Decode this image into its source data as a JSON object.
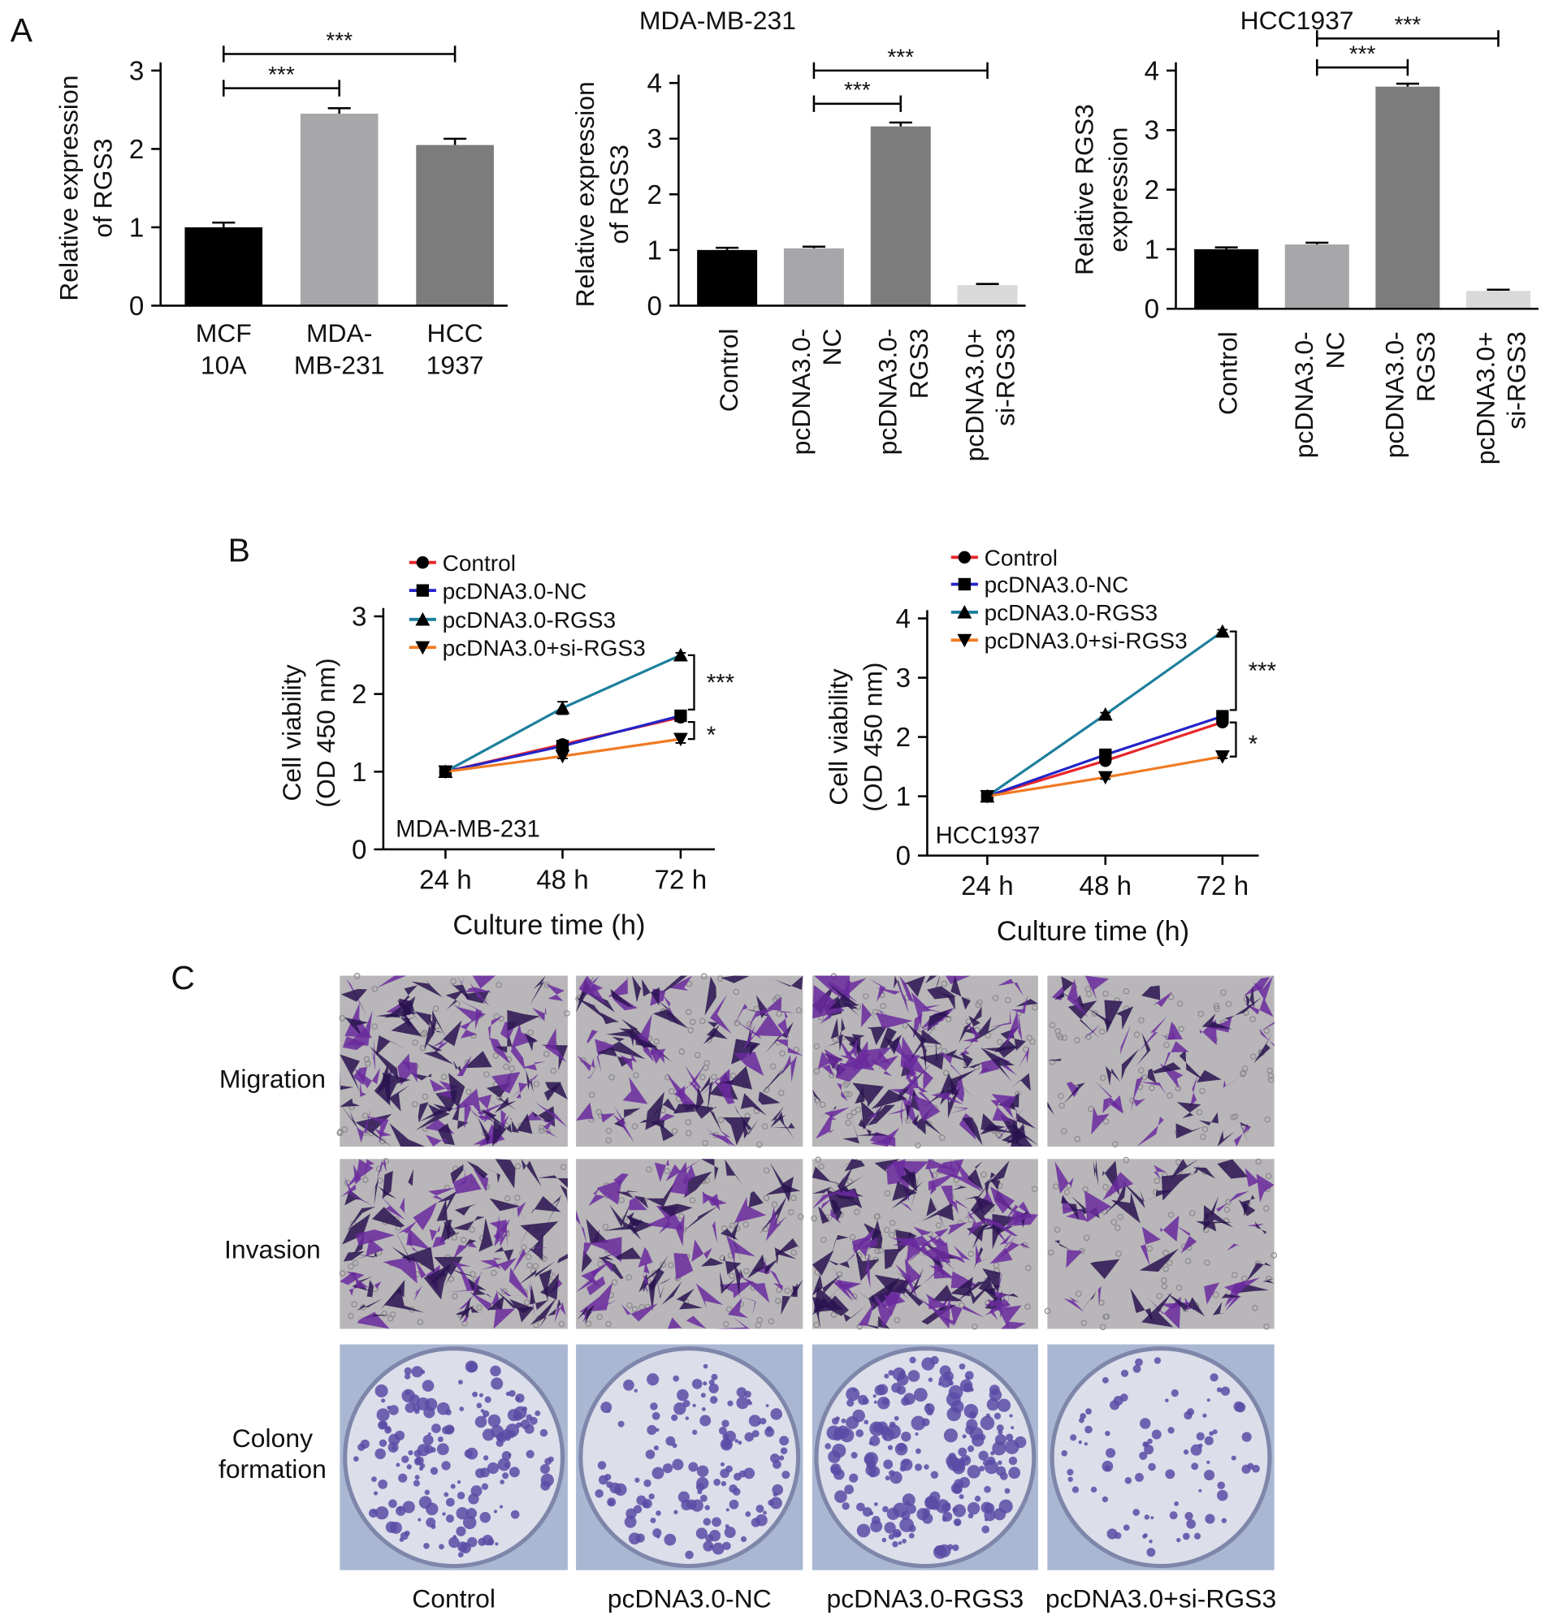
{
  "panel_labels": [
    "A",
    "B",
    "C"
  ],
  "chart_data": [
    {
      "type": "bar",
      "y_label": "Relative expression\nof RGS3",
      "categories": [
        "MCF\n10A",
        "MDA-\nMB-231",
        "HCC\n1937"
      ],
      "values": [
        1.0,
        2.45,
        2.05
      ],
      "errors": [
        0.06,
        0.07,
        0.08
      ],
      "colors": [
        "#000000",
        "#a7a7aa",
        "#7c7c7c"
      ],
      "ylim": [
        0,
        3
      ],
      "yticks": [
        0,
        1,
        2,
        3
      ],
      "significance": [
        "***",
        "***"
      ]
    },
    {
      "type": "bar",
      "title": "MDA-MB-231",
      "y_label": "Relative expression\nof RGS3",
      "categories": [
        "Control",
        "pcDNA3.0-\nNC",
        "pcDNA3.0-\nRGS3",
        "pcDNA3.0+\nsi-RGS3"
      ],
      "values": [
        1.0,
        1.03,
        3.22,
        0.37
      ],
      "errors": [
        0.04,
        0.03,
        0.07,
        0.02
      ],
      "colors": [
        "#000000",
        "#a7a7aa",
        "#7c7c7c",
        "#d9d9d9"
      ],
      "ylim": [
        0,
        4
      ],
      "yticks": [
        0,
        1,
        2,
        3,
        4
      ],
      "significance": [
        "***",
        "***"
      ]
    },
    {
      "type": "bar",
      "title": "HCC1937",
      "y_label": "Relative RGS3\nexpression",
      "categories": [
        "Control",
        "pcDNA3.0-\nNC",
        "pcDNA3.0-\nRGS3",
        "pcDNA3.0+\nsi-RGS3"
      ],
      "values": [
        1.0,
        1.08,
        3.73,
        0.3
      ],
      "errors": [
        0.03,
        0.03,
        0.05,
        0.02
      ],
      "colors": [
        "#000000",
        "#a7a7aa",
        "#7c7c7c",
        "#d9d9d9"
      ],
      "ylim": [
        0,
        4
      ],
      "yticks": [
        0,
        1,
        2,
        3,
        4
      ],
      "significance": [
        "***",
        "***"
      ]
    },
    {
      "type": "line",
      "x_label": "Culture time (h)",
      "y_label": "Cell viability\n(OD 450 nm)",
      "categories": [
        "24 h",
        "48 h",
        "72 h"
      ],
      "series": [
        {
          "name": "Control",
          "color": "#e8262b",
          "marker": "circle",
          "values": [
            1.0,
            1.35,
            1.7
          ],
          "errors": [
            0.02,
            0.03,
            0.04
          ]
        },
        {
          "name": "pcDNA3.0-NC",
          "color": "#2323c8",
          "marker": "square",
          "values": [
            1.0,
            1.33,
            1.72
          ],
          "errors": [
            0.02,
            0.03,
            0.04
          ]
        },
        {
          "name": "pcDNA3.0-RGS3",
          "color": "#1d7f9c",
          "marker": "triangle-up",
          "values": [
            1.0,
            1.82,
            2.5
          ],
          "errors": [
            0.02,
            0.08,
            0.03
          ]
        },
        {
          "name": "pcDNA3.0+si-RGS3",
          "color": "#f07a22",
          "marker": "triangle-down",
          "values": [
            1.0,
            1.2,
            1.42
          ],
          "errors": [
            0.02,
            0.03,
            0.05
          ]
        }
      ],
      "ylim": [
        0,
        3
      ],
      "yticks": [
        0,
        1,
        2,
        3
      ],
      "inset_label": "MDA-MB-231",
      "significance": [
        "***",
        "*"
      ]
    },
    {
      "type": "line",
      "x_label": "Culture time (h)",
      "y_label": "Cell viability\n(OD 450 nm)",
      "categories": [
        "24 h",
        "48 h",
        "72 h"
      ],
      "series": [
        {
          "name": "Control",
          "color": "#e8262b",
          "marker": "circle",
          "values": [
            1.0,
            1.6,
            2.25
          ],
          "errors": [
            0.02,
            0.03,
            0.04
          ]
        },
        {
          "name": "pcDNA3.0-NC",
          "color": "#2323c8",
          "marker": "square",
          "values": [
            1.0,
            1.7,
            2.35
          ],
          "errors": [
            0.02,
            0.03,
            0.04
          ]
        },
        {
          "name": "pcDNA3.0-RGS3",
          "color": "#1d7f9c",
          "marker": "triangle-up",
          "values": [
            1.0,
            2.38,
            3.78
          ],
          "errors": [
            0.02,
            0.03,
            0.03
          ]
        },
        {
          "name": "pcDNA3.0+si-RGS3",
          "color": "#f07a22",
          "marker": "triangle-down",
          "values": [
            1.0,
            1.32,
            1.67
          ],
          "errors": [
            0.02,
            0.03,
            0.03
          ]
        }
      ],
      "ylim": [
        0,
        4
      ],
      "yticks": [
        0,
        1,
        2,
        3,
        4
      ],
      "inset_label": "HCC1937",
      "significance": [
        "***",
        "*"
      ]
    }
  ],
  "panel_c": {
    "row_labels": [
      "Migration",
      "Invasion",
      "Colony\nformation"
    ],
    "column_labels": [
      "Control",
      "pcDNA3.0-NC",
      "pcDNA3.0-RGS3",
      "pcDNA3.0+si-RGS3"
    ]
  }
}
